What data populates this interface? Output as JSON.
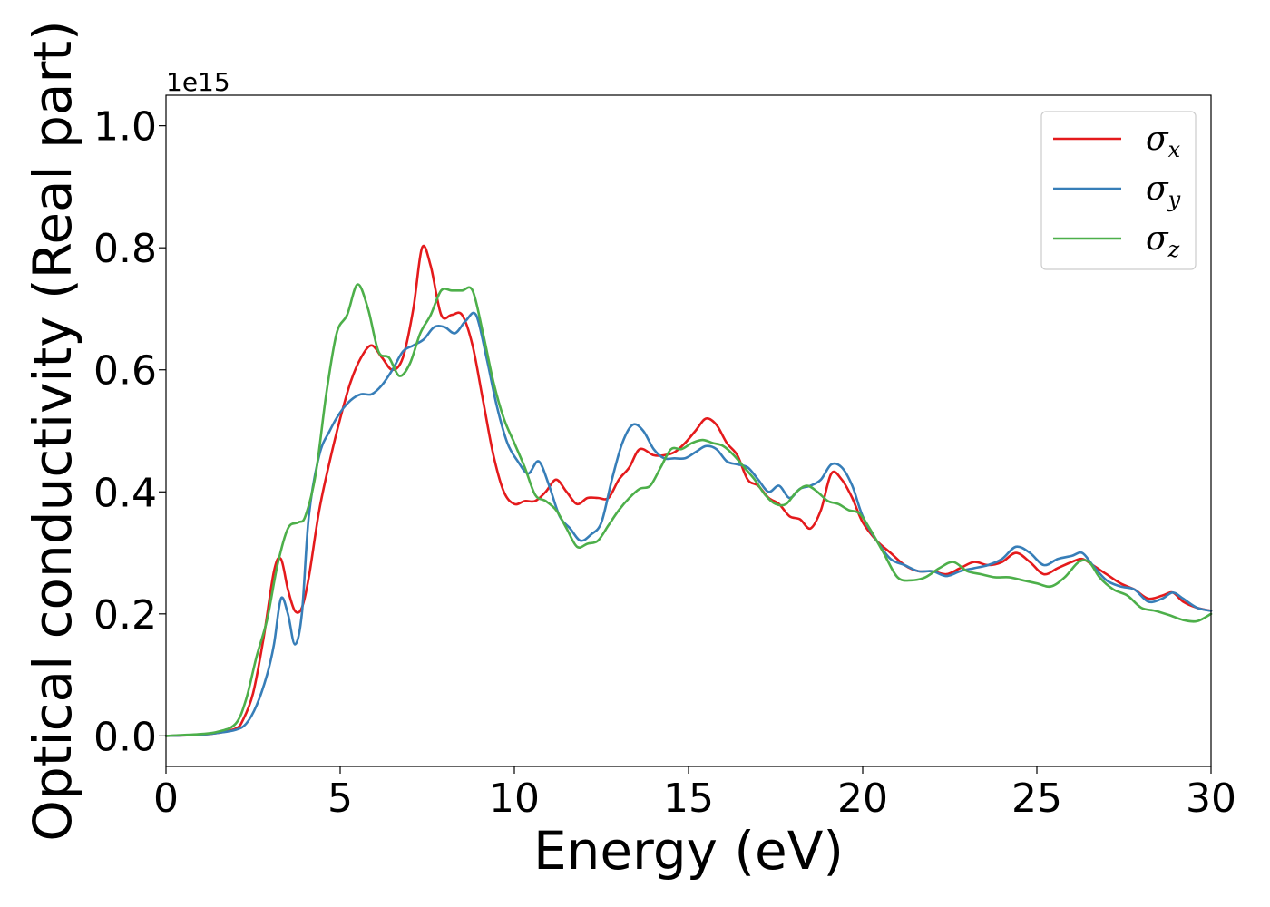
{
  "chart_data": {
    "type": "line",
    "title": "",
    "xlabel": "Energy (eV)",
    "ylabel": "Optical conductivity (Real part)",
    "y_offset_label": "1e15",
    "xlim": [
      0,
      30
    ],
    "ylim": [
      -0.05,
      1.05
    ],
    "xticks": [
      0,
      5,
      10,
      15,
      20,
      25,
      30
    ],
    "xtick_labels": [
      "0",
      "5",
      "10",
      "15",
      "20",
      "25",
      "30"
    ],
    "yticks": [
      0.0,
      0.2,
      0.4,
      0.6,
      0.8,
      1.0
    ],
    "ytick_labels": [
      "0.0",
      "0.2",
      "0.4",
      "0.6",
      "0.8",
      "1.0"
    ],
    "grid": false,
    "legend_position": "top-right",
    "series": [
      {
        "name": "σx",
        "symbol": "σ",
        "subscript": "x",
        "color": "#e41a1c",
        "x": [
          0,
          1,
          1.5,
          2,
          2.2,
          2.5,
          2.8,
          3.1,
          3.3,
          3.5,
          3.7,
          3.9,
          4.1,
          4.4,
          4.7,
          5.0,
          5.3,
          5.6,
          5.9,
          6.2,
          6.5,
          6.8,
          7.1,
          7.35,
          7.6,
          7.9,
          8.2,
          8.5,
          8.8,
          9.1,
          9.4,
          9.7,
          10.0,
          10.3,
          10.6,
          10.9,
          11.2,
          11.5,
          11.8,
          12.1,
          12.4,
          12.7,
          13.0,
          13.3,
          13.6,
          14.0,
          14.3,
          14.6,
          14.9,
          15.2,
          15.5,
          15.8,
          16.1,
          16.4,
          16.7,
          17.0,
          17.3,
          17.6,
          17.9,
          18.2,
          18.5,
          18.8,
          19.1,
          19.4,
          19.7,
          20.0,
          20.4,
          20.8,
          21.2,
          21.6,
          22.0,
          22.4,
          22.8,
          23.2,
          23.6,
          24.0,
          24.4,
          24.8,
          25.2,
          25.6,
          26.0,
          26.3,
          26.6,
          27.0,
          27.4,
          27.8,
          28.2,
          28.6,
          28.9,
          29.2,
          29.6,
          30.0
        ],
        "y": [
          0.0,
          0.002,
          0.005,
          0.012,
          0.025,
          0.07,
          0.16,
          0.27,
          0.29,
          0.24,
          0.205,
          0.21,
          0.26,
          0.37,
          0.45,
          0.52,
          0.58,
          0.62,
          0.64,
          0.62,
          0.6,
          0.62,
          0.7,
          0.8,
          0.77,
          0.69,
          0.69,
          0.69,
          0.64,
          0.55,
          0.46,
          0.4,
          0.38,
          0.385,
          0.385,
          0.4,
          0.42,
          0.4,
          0.38,
          0.39,
          0.39,
          0.39,
          0.42,
          0.44,
          0.47,
          0.46,
          0.46,
          0.465,
          0.48,
          0.5,
          0.52,
          0.51,
          0.48,
          0.46,
          0.42,
          0.41,
          0.39,
          0.38,
          0.36,
          0.355,
          0.34,
          0.37,
          0.43,
          0.42,
          0.39,
          0.35,
          0.32,
          0.3,
          0.28,
          0.27,
          0.27,
          0.265,
          0.275,
          0.285,
          0.28,
          0.285,
          0.3,
          0.285,
          0.265,
          0.275,
          0.285,
          0.29,
          0.28,
          0.265,
          0.25,
          0.24,
          0.225,
          0.23,
          0.235,
          0.22,
          0.21,
          0.205
        ]
      },
      {
        "name": "σy",
        "symbol": "σ",
        "subscript": "y",
        "color": "#377eb8",
        "x": [
          0,
          1,
          1.5,
          2,
          2.3,
          2.6,
          2.9,
          3.1,
          3.3,
          3.5,
          3.7,
          3.9,
          4.1,
          4.4,
          4.7,
          5.0,
          5.3,
          5.6,
          5.9,
          6.2,
          6.5,
          6.8,
          7.1,
          7.4,
          7.7,
          8.0,
          8.3,
          8.6,
          8.9,
          9.2,
          9.5,
          9.8,
          10.1,
          10.4,
          10.7,
          11.0,
          11.3,
          11.6,
          11.9,
          12.2,
          12.5,
          12.8,
          13.1,
          13.4,
          13.7,
          14.0,
          14.3,
          14.6,
          14.9,
          15.2,
          15.5,
          15.8,
          16.1,
          16.4,
          16.7,
          17.0,
          17.3,
          17.6,
          17.9,
          18.2,
          18.5,
          18.8,
          19.1,
          19.4,
          19.7,
          20.0,
          20.4,
          20.8,
          21.2,
          21.6,
          22.0,
          22.4,
          22.8,
          23.2,
          23.6,
          24.0,
          24.4,
          24.8,
          25.2,
          25.6,
          26.0,
          26.3,
          26.6,
          27.0,
          27.4,
          27.8,
          28.2,
          28.6,
          28.9,
          29.2,
          29.6,
          30.0
        ],
        "y": [
          0.0,
          0.002,
          0.005,
          0.01,
          0.02,
          0.05,
          0.1,
          0.15,
          0.225,
          0.2,
          0.15,
          0.2,
          0.36,
          0.46,
          0.5,
          0.53,
          0.55,
          0.56,
          0.56,
          0.575,
          0.6,
          0.63,
          0.64,
          0.65,
          0.67,
          0.67,
          0.66,
          0.68,
          0.69,
          0.62,
          0.54,
          0.48,
          0.45,
          0.43,
          0.45,
          0.41,
          0.36,
          0.34,
          0.32,
          0.33,
          0.35,
          0.42,
          0.48,
          0.51,
          0.5,
          0.47,
          0.455,
          0.455,
          0.455,
          0.465,
          0.475,
          0.47,
          0.45,
          0.445,
          0.44,
          0.42,
          0.4,
          0.41,
          0.39,
          0.405,
          0.41,
          0.42,
          0.445,
          0.44,
          0.41,
          0.36,
          0.32,
          0.29,
          0.28,
          0.27,
          0.27,
          0.262,
          0.27,
          0.275,
          0.28,
          0.29,
          0.31,
          0.3,
          0.28,
          0.29,
          0.295,
          0.3,
          0.28,
          0.255,
          0.245,
          0.24,
          0.22,
          0.225,
          0.235,
          0.225,
          0.21,
          0.205
        ]
      },
      {
        "name": "σz",
        "symbol": "σ",
        "subscript": "z",
        "color": "#4daf4a",
        "x": [
          0,
          1,
          1.5,
          2,
          2.3,
          2.6,
          2.9,
          3.2,
          3.5,
          3.8,
          4.0,
          4.3,
          4.6,
          4.9,
          5.2,
          5.5,
          5.8,
          6.1,
          6.4,
          6.7,
          7.0,
          7.3,
          7.6,
          7.9,
          8.2,
          8.5,
          8.8,
          9.1,
          9.4,
          9.7,
          10.0,
          10.3,
          10.6,
          10.9,
          11.2,
          11.5,
          11.8,
          12.1,
          12.4,
          12.7,
          13.0,
          13.3,
          13.6,
          13.9,
          14.2,
          14.5,
          14.8,
          15.1,
          15.4,
          15.7,
          16.0,
          16.3,
          16.6,
          16.9,
          17.2,
          17.5,
          17.8,
          18.1,
          18.4,
          18.7,
          19.0,
          19.3,
          19.6,
          19.9,
          20.2,
          20.6,
          21.0,
          21.4,
          21.8,
          22.2,
          22.6,
          23.0,
          23.4,
          23.8,
          24.2,
          24.6,
          25.0,
          25.4,
          25.8,
          26.2,
          26.5,
          26.8,
          27.2,
          27.6,
          28.0,
          28.4,
          28.8,
          29.2,
          29.6,
          30.0
        ],
        "y": [
          0.0,
          0.003,
          0.007,
          0.02,
          0.06,
          0.13,
          0.19,
          0.28,
          0.34,
          0.35,
          0.36,
          0.43,
          0.56,
          0.66,
          0.69,
          0.74,
          0.7,
          0.63,
          0.62,
          0.59,
          0.61,
          0.66,
          0.69,
          0.73,
          0.73,
          0.73,
          0.73,
          0.66,
          0.58,
          0.52,
          0.48,
          0.44,
          0.395,
          0.385,
          0.37,
          0.34,
          0.31,
          0.315,
          0.32,
          0.345,
          0.37,
          0.39,
          0.405,
          0.41,
          0.44,
          0.47,
          0.47,
          0.48,
          0.485,
          0.48,
          0.475,
          0.46,
          0.44,
          0.42,
          0.395,
          0.38,
          0.38,
          0.4,
          0.41,
          0.4,
          0.385,
          0.38,
          0.37,
          0.365,
          0.34,
          0.3,
          0.26,
          0.255,
          0.26,
          0.275,
          0.285,
          0.27,
          0.265,
          0.26,
          0.26,
          0.255,
          0.25,
          0.245,
          0.26,
          0.285,
          0.285,
          0.26,
          0.24,
          0.23,
          0.21,
          0.205,
          0.198,
          0.19,
          0.188,
          0.2
        ]
      }
    ]
  }
}
